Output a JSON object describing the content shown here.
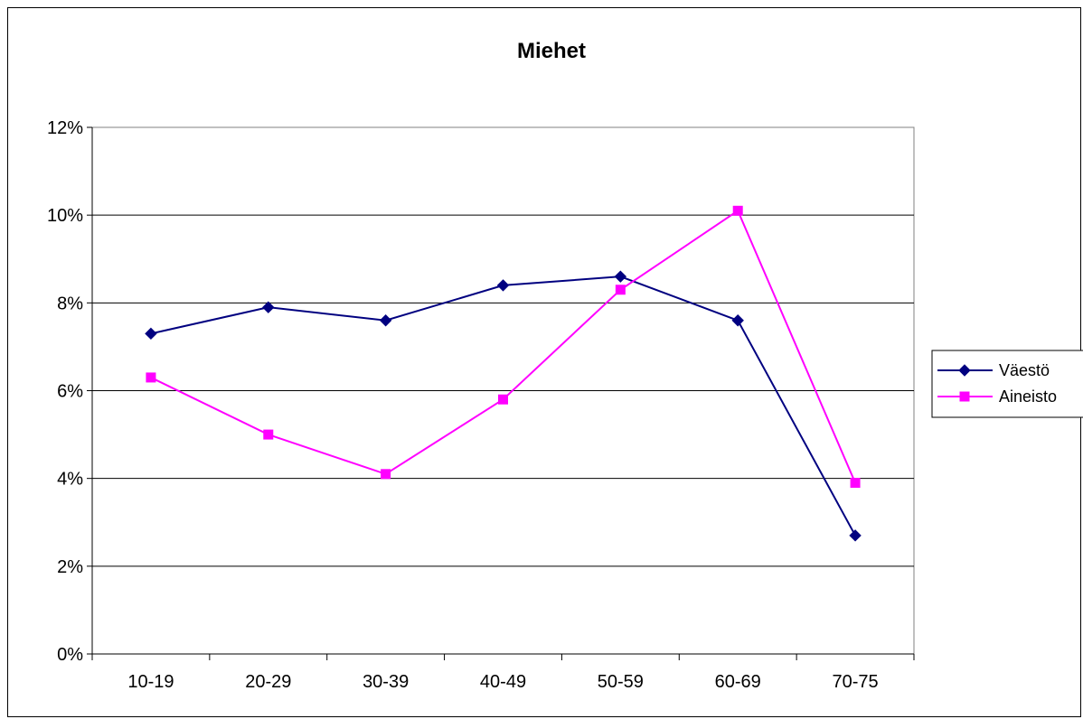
{
  "chart_data": {
    "type": "line",
    "title": "Miehet",
    "xlabel": "",
    "ylabel": "",
    "categories": [
      "10-19",
      "20-29",
      "30-39",
      "40-49",
      "50-59",
      "60-69",
      "70-75"
    ],
    "y_ticks": [
      "0%",
      "2%",
      "4%",
      "6%",
      "8%",
      "10%",
      "12%"
    ],
    "ylim": [
      0,
      12
    ],
    "grid": true,
    "legend_position": "right",
    "series": [
      {
        "name": "Väestö",
        "color": "#000080",
        "marker": "diamond",
        "values": [
          7.3,
          7.9,
          7.6,
          8.4,
          8.6,
          7.6,
          2.7
        ]
      },
      {
        "name": "Aineisto",
        "color": "#ff00ff",
        "marker": "square",
        "values": [
          6.3,
          5.0,
          4.1,
          5.8,
          8.3,
          10.1,
          3.9
        ]
      }
    ]
  }
}
